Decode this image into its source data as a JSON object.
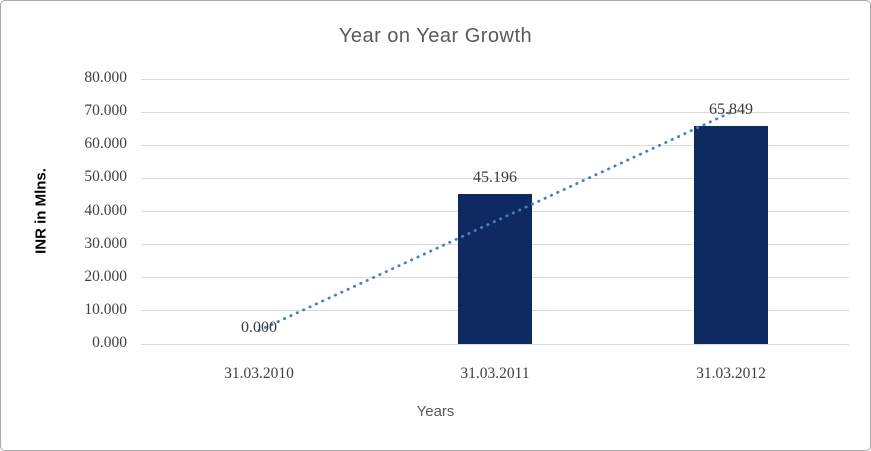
{
  "chart_data": {
    "type": "bar",
    "title": "Year on Year Growth",
    "categories": [
      "31.03.2010",
      "31.03.2011",
      "31.03.2012"
    ],
    "values": [
      0.0,
      45.196,
      65.849
    ],
    "data_labels": [
      "0.000",
      "45.196",
      "65.849"
    ],
    "xlabel": "Years",
    "ylabel": "INR in Mlns.",
    "ylim": [
      0,
      80
    ],
    "ytick_step": 10,
    "ytick_labels": [
      "0.000",
      "10.000",
      "20.000",
      "30.000",
      "40.000",
      "50.000",
      "60.000",
      "70.000",
      "80.000"
    ],
    "grid": true,
    "legend": "none",
    "trendline": {
      "type": "linear",
      "style": "dotted",
      "fitted_values": [
        4.091,
        37.015,
        69.94
      ]
    },
    "colors": {
      "bar_fill": "#0f2961",
      "trendline": "#4a7ebb",
      "gridline": "#d9d9d9",
      "title_text": "#595959",
      "tick_text": "#3f3f3f",
      "axis_title_text": "#000000",
      "chart_border": "#a9a9a9",
      "background": "#ffffff"
    }
  }
}
